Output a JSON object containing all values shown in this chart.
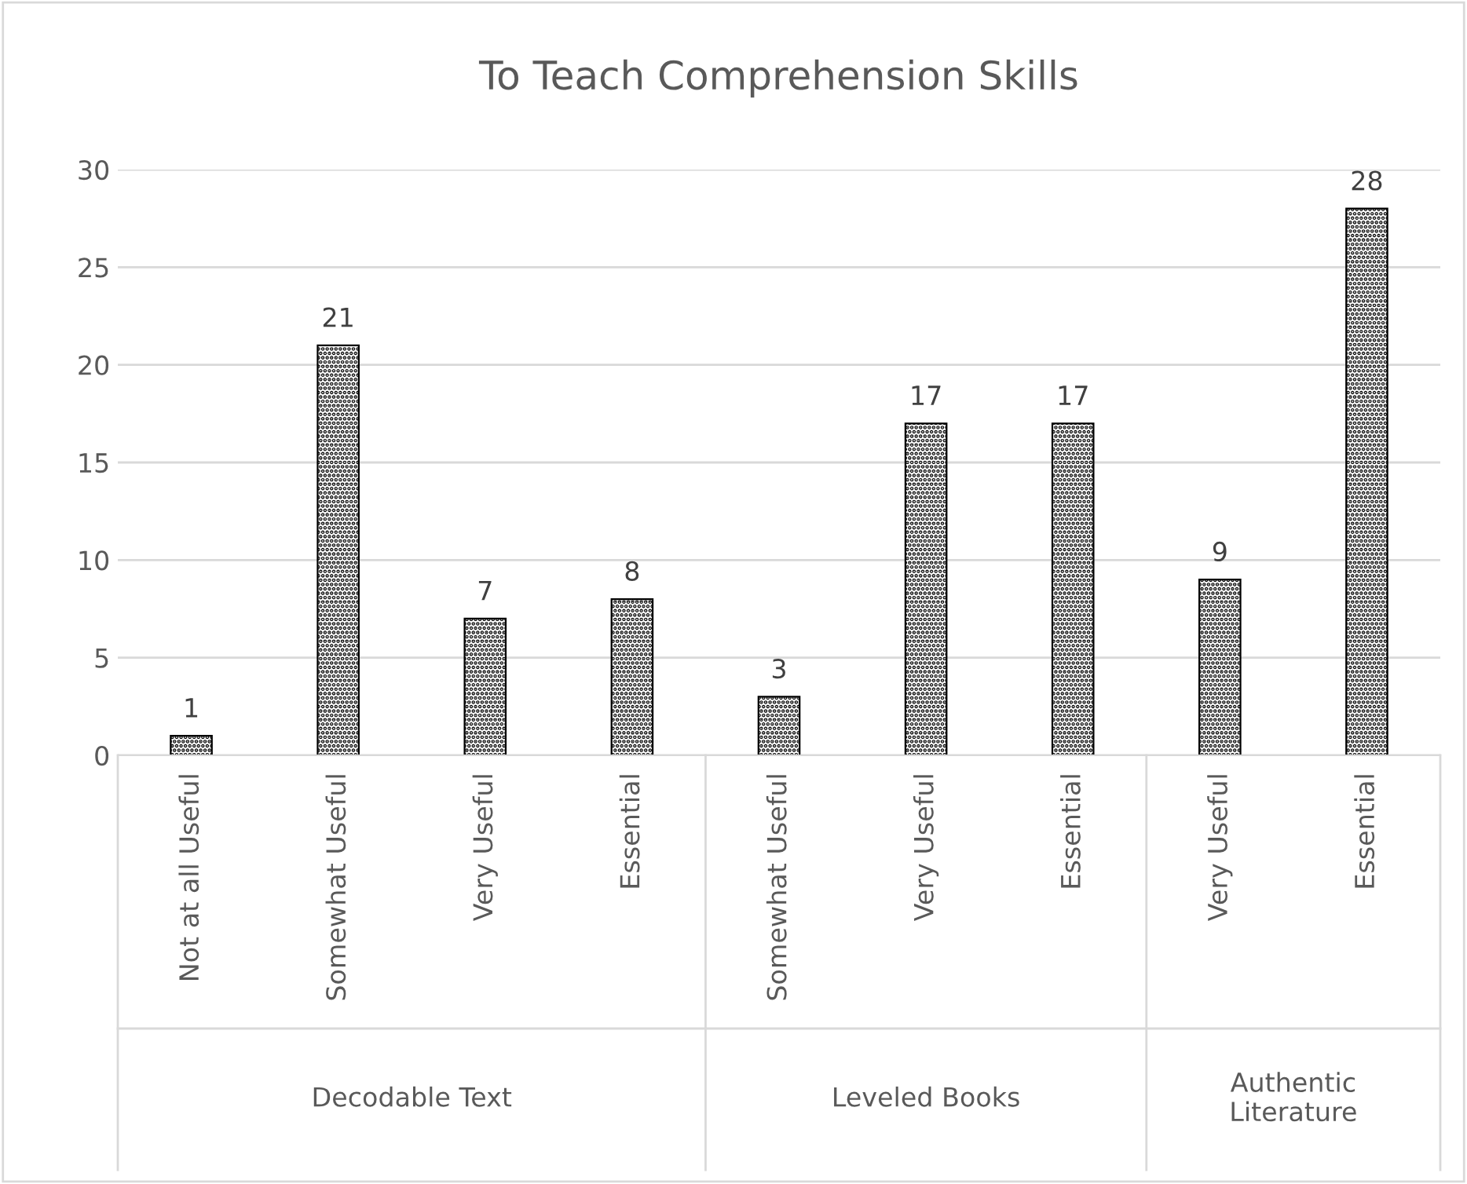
{
  "chart_data": {
    "type": "bar",
    "title": "To Teach Comprehension Skills",
    "categories": [
      "Not at all Useful",
      "Somewhat Useful",
      "Very Useful",
      "Essential",
      "Somewhat Useful",
      "Very Useful",
      "Essential",
      "Very Useful",
      "Essential"
    ],
    "values": [
      1,
      21,
      7,
      8,
      3,
      17,
      17,
      9,
      28
    ],
    "color": "#000000",
    "ylim": [
      0,
      30
    ],
    "yticks": [
      0,
      5,
      10,
      15,
      20,
      25,
      30
    ],
    "grid": "y",
    "data_labels": true,
    "annotations": [
      "Decodable Text",
      "Leveled Books",
      "Authentic\nLiterature"
    ]
  }
}
